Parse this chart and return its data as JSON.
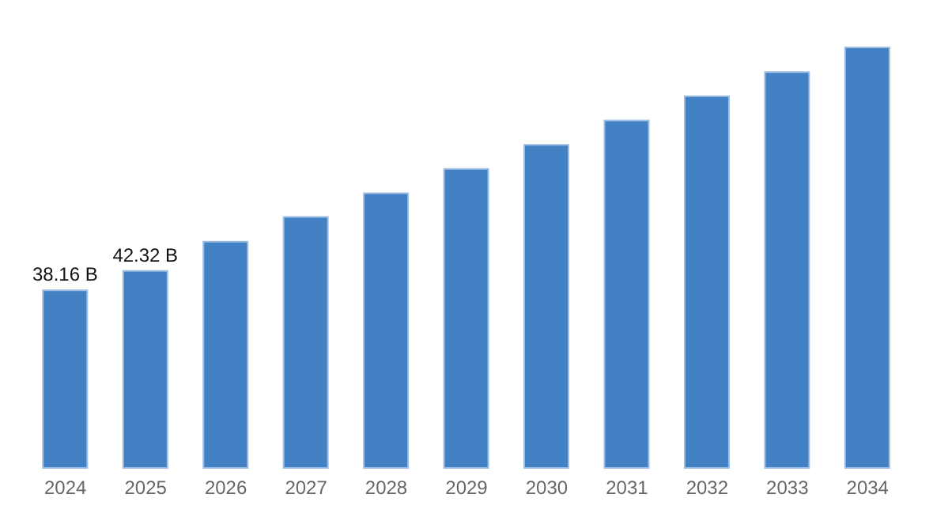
{
  "chart_data": {
    "type": "bar",
    "categories": [
      "2024",
      "2025",
      "2026",
      "2027",
      "2028",
      "2029",
      "2030",
      "2031",
      "2032",
      "2033",
      "2034"
    ],
    "values": [
      38.16,
      42.32,
      48.6,
      53.9,
      59.0,
      64.2,
      69.4,
      74.6,
      79.8,
      85.0,
      90.3
    ],
    "value_labels": [
      "38.16 B",
      "42.32 B",
      null,
      null,
      null,
      null,
      null,
      null,
      null,
      null,
      null
    ],
    "color": "#4282c4",
    "grid": false
  }
}
